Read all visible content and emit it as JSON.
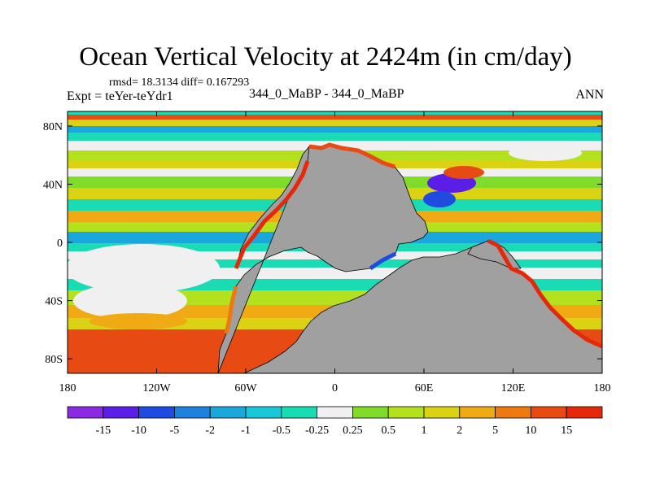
{
  "chart_data": {
    "type": "heatmap",
    "title": "Ocean Vertical Velocity at 2424m (in cm/day)",
    "stats": "rmsd= 18.3134 diff= 0.167293",
    "experiment": "Expt = teYer-teYdr1",
    "case_label": "344_0_MaBP - 344_0_MaBP",
    "season": "ANN",
    "x_ticks": [
      "180",
      "120W",
      "60W",
      "0",
      "60E",
      "120E",
      "180"
    ],
    "x_tick_values": [
      -180,
      -120,
      -60,
      0,
      60,
      120,
      180
    ],
    "y_ticks": [
      "80N",
      "40N",
      "0",
      "40S",
      "80S"
    ],
    "y_tick_values": [
      80,
      40,
      0,
      -40,
      -80
    ],
    "xlim": [
      -180,
      180
    ],
    "ylim": [
      -90,
      90
    ],
    "colorbar": {
      "labels": [
        "-15",
        "-10",
        "-5",
        "-2",
        "-1",
        "-0.5",
        "-0.25",
        "0.25",
        "0.5",
        "1",
        "2",
        "5",
        "10",
        "15"
      ],
      "colors": [
        "#8a2be2",
        "#5a1ee6",
        "#1f4be0",
        "#1e82dc",
        "#1aa7dc",
        "#18c8d8",
        "#19dcb4",
        "#f0f0f0",
        "#7fdc28",
        "#b4e11e",
        "#dcd214",
        "#f0aa14",
        "#ec7a10",
        "#e84a14",
        "#e6280a"
      ]
    },
    "land_color": "#a0a0a0"
  }
}
